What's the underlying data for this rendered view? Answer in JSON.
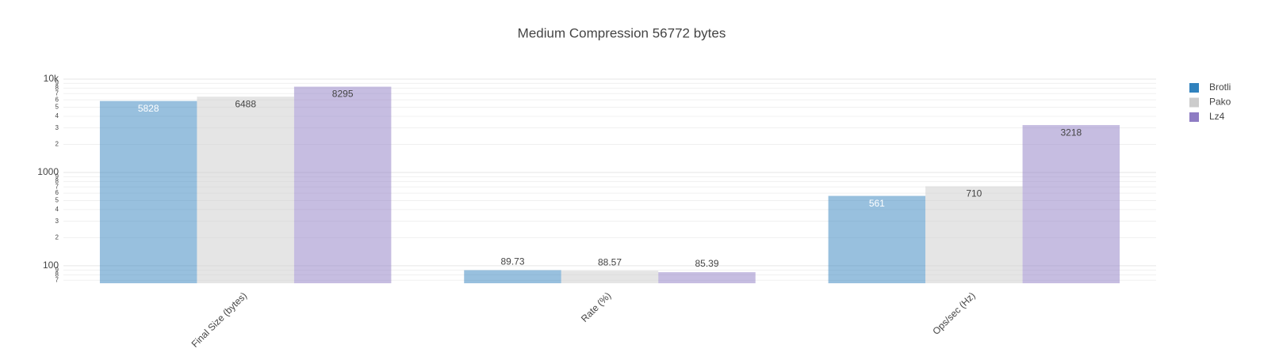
{
  "chart_data": {
    "type": "bar",
    "title": "Medium Compression 56772 bytes",
    "categories": [
      "Final Size (bytes)",
      "Rate (%)",
      "Ops/sec (Hz)"
    ],
    "series": [
      {
        "name": "Brotli",
        "color": "#3182bd",
        "values": [
          5828,
          89.73,
          561
        ]
      },
      {
        "name": "Pako",
        "color": "#cccccc",
        "values": [
          6488,
          88.57,
          710
        ]
      },
      {
        "name": "Lz4",
        "color": "#8e7cc3",
        "values": [
          8295,
          85.39,
          3218
        ]
      }
    ],
    "log_y": true,
    "ylim": [
      65,
      10000
    ],
    "yticks": [
      {
        "value": 70,
        "label": "7"
      },
      {
        "value": 80,
        "label": "8"
      },
      {
        "value": 90,
        "label": "9"
      },
      100,
      {
        "value": 200,
        "label": "2"
      },
      {
        "value": 300,
        "label": "3"
      },
      {
        "value": 400,
        "label": "4"
      },
      {
        "value": 500,
        "label": "5"
      },
      {
        "value": 600,
        "label": "6"
      },
      {
        "value": 700,
        "label": "7"
      },
      {
        "value": 800,
        "label": "8"
      },
      {
        "value": 900,
        "label": "9"
      },
      1000,
      {
        "value": 2000,
        "label": "2"
      },
      {
        "value": 3000,
        "label": "3"
      },
      {
        "value": 4000,
        "label": "4"
      },
      {
        "value": 5000,
        "label": "5"
      },
      {
        "value": 6000,
        "label": "6"
      },
      {
        "value": 7000,
        "label": "7"
      },
      {
        "value": 8000,
        "label": "8"
      },
      {
        "value": 9000,
        "label": "9"
      },
      {
        "value": 10000,
        "label": "10k"
      }
    ],
    "grid": true,
    "legend": "top-right"
  }
}
